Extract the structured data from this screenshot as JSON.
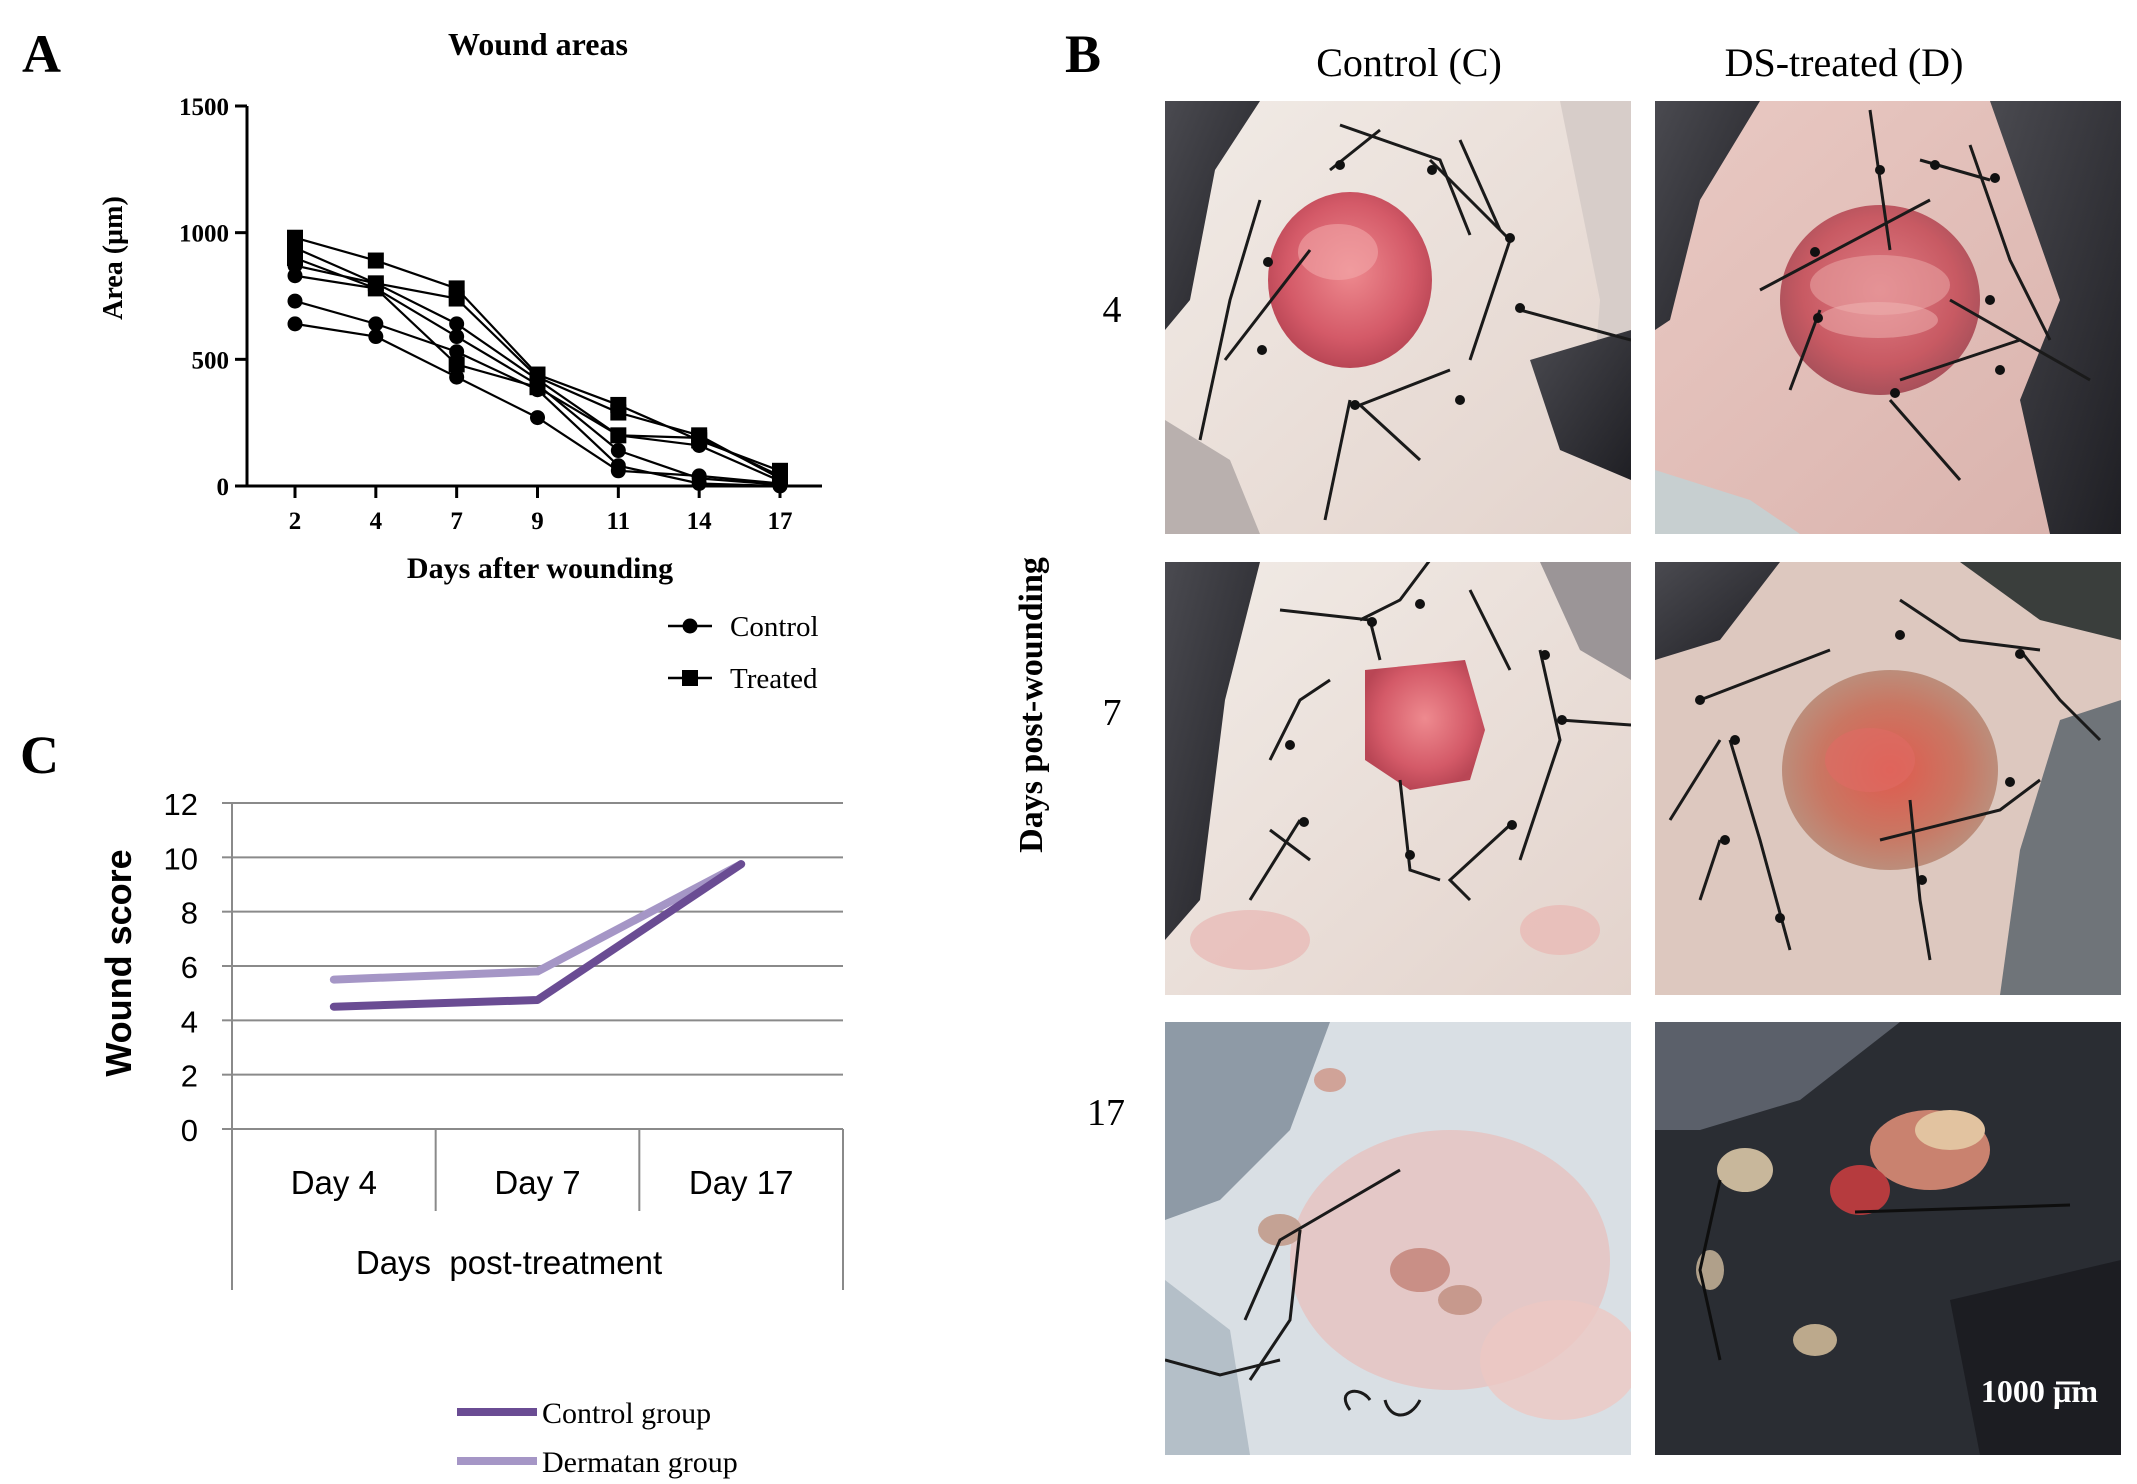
{
  "panel_labels": {
    "a": "A",
    "b": "B",
    "c": "C"
  },
  "colors": {
    "control_group": "#6a4c93",
    "dermatan_group": "#a596c6",
    "gridline": "#8a8a8a",
    "skin": "#eadfd8",
    "fur": "#3a3a3e",
    "wound": "#d9606e",
    "suture": "#1a1a1a"
  },
  "chart_data": [
    {
      "id": "wound-areas",
      "type": "line",
      "title": "Wound areas",
      "xlabel": "Days after wounding",
      "ylabel": "Area (µm)",
      "categories": [
        "2",
        "4",
        "7",
        "9",
        "11",
        "14",
        "17"
      ],
      "yticks": [
        "0",
        "500",
        "1000",
        "1500"
      ],
      "ylim": [
        0,
        1500
      ],
      "legend": [
        {
          "label": "Control",
          "marker": "circle"
        },
        {
          "label": "Treated",
          "marker": "square"
        }
      ],
      "series": [
        {
          "name": "Control",
          "marker": "circle",
          "values": [
            640,
            590,
            430,
            270,
            60,
            40,
            10
          ]
        },
        {
          "name": "Control",
          "marker": "circle",
          "values": [
            730,
            640,
            530,
            380,
            80,
            10,
            0
          ]
        },
        {
          "name": "Control",
          "marker": "circle",
          "values": [
            830,
            780,
            590,
            400,
            140,
            30,
            5
          ]
        },
        {
          "name": "Control",
          "marker": "circle",
          "values": [
            870,
            800,
            640,
            420,
            200,
            160,
            20
          ]
        },
        {
          "name": "Treated",
          "marker": "square",
          "values": [
            900,
            780,
            480,
            390,
            200,
            190,
            40
          ]
        },
        {
          "name": "Treated",
          "marker": "square",
          "values": [
            940,
            800,
            740,
            430,
            290,
            200,
            30
          ]
        },
        {
          "name": "Treated",
          "marker": "square",
          "values": [
            980,
            890,
            780,
            440,
            320,
            180,
            60
          ]
        }
      ]
    },
    {
      "id": "wound-score",
      "type": "line",
      "ylabel": "Wound score",
      "xlabel": "Days  post-treatment",
      "categories": [
        "Day 4",
        "Day 7",
        "Day 17"
      ],
      "yticks": [
        "0",
        "2",
        "4",
        "6",
        "8",
        "10",
        "12"
      ],
      "ylim": [
        0,
        12
      ],
      "series": [
        {
          "name": "Control group",
          "values": [
            4.5,
            4.75,
            9.75
          ]
        },
        {
          "name": "Dermatan group",
          "values": [
            5.5,
            5.8,
            9.75
          ]
        }
      ]
    }
  ],
  "photos": {
    "col_headers": [
      "Control (C)",
      "DS-treated (D)"
    ],
    "row_axis_label": "Days post-wounding",
    "row_labels": [
      "4",
      "7",
      "17"
    ],
    "scale_bar": "1000 µm"
  }
}
